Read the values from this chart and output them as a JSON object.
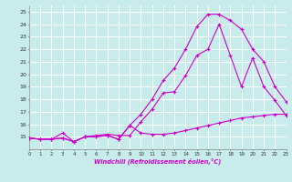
{
  "xlabel": "Windchill (Refroidissement éolien,°C)",
  "bg_color": "#c8ecec",
  "grid_color": "#ffffff",
  "line_color": "#cc00cc",
  "x_ticks": [
    0,
    1,
    2,
    3,
    4,
    5,
    6,
    7,
    8,
    9,
    10,
    11,
    12,
    13,
    14,
    15,
    16,
    17,
    18,
    19,
    20,
    21,
    22,
    23
  ],
  "xlim": [
    0,
    23
  ],
  "ylim": [
    14.0,
    25.5
  ],
  "y_ticks": [
    15,
    16,
    17,
    18,
    19,
    20,
    21,
    22,
    23,
    24,
    25
  ],
  "y_labels": [
    "15",
    "16",
    "17",
    "18",
    "19",
    "20",
    "21",
    "22",
    "23",
    "24",
    "25"
  ],
  "line1_x": [
    0,
    1,
    2,
    3,
    4,
    5,
    6,
    7,
    8,
    9,
    10,
    11,
    12,
    13,
    14,
    15,
    16,
    17,
    18,
    19,
    20,
    21,
    22,
    23
  ],
  "line1_y": [
    14.9,
    14.8,
    14.8,
    14.9,
    14.6,
    15.0,
    15.0,
    15.1,
    14.8,
    15.9,
    15.3,
    15.2,
    15.2,
    15.3,
    15.5,
    15.7,
    15.9,
    16.1,
    16.3,
    16.5,
    16.6,
    16.7,
    16.8,
    16.8
  ],
  "line2_x": [
    0,
    1,
    2,
    3,
    4,
    5,
    6,
    7,
    8,
    9,
    10,
    11,
    12,
    13,
    14,
    15,
    16,
    17,
    18,
    19,
    20,
    21,
    22,
    23
  ],
  "line2_y": [
    14.9,
    14.8,
    14.8,
    15.3,
    14.6,
    15.0,
    15.1,
    15.2,
    15.1,
    15.1,
    16.2,
    17.2,
    18.5,
    18.6,
    19.9,
    21.5,
    22.0,
    24.0,
    21.5,
    19.0,
    21.3,
    19.0,
    17.9,
    16.7
  ],
  "line3_x": [
    0,
    1,
    2,
    3,
    4,
    5,
    6,
    7,
    8,
    9,
    10,
    11,
    12,
    13,
    14,
    15,
    16,
    17,
    18,
    19,
    20,
    21,
    22,
    23
  ],
  "line3_y": [
    14.9,
    14.8,
    14.8,
    14.9,
    14.6,
    15.0,
    15.0,
    15.1,
    14.8,
    15.9,
    16.8,
    18.0,
    19.5,
    20.5,
    22.0,
    23.8,
    24.8,
    24.8,
    24.3,
    23.6,
    22.0,
    21.0,
    19.0,
    17.8
  ]
}
